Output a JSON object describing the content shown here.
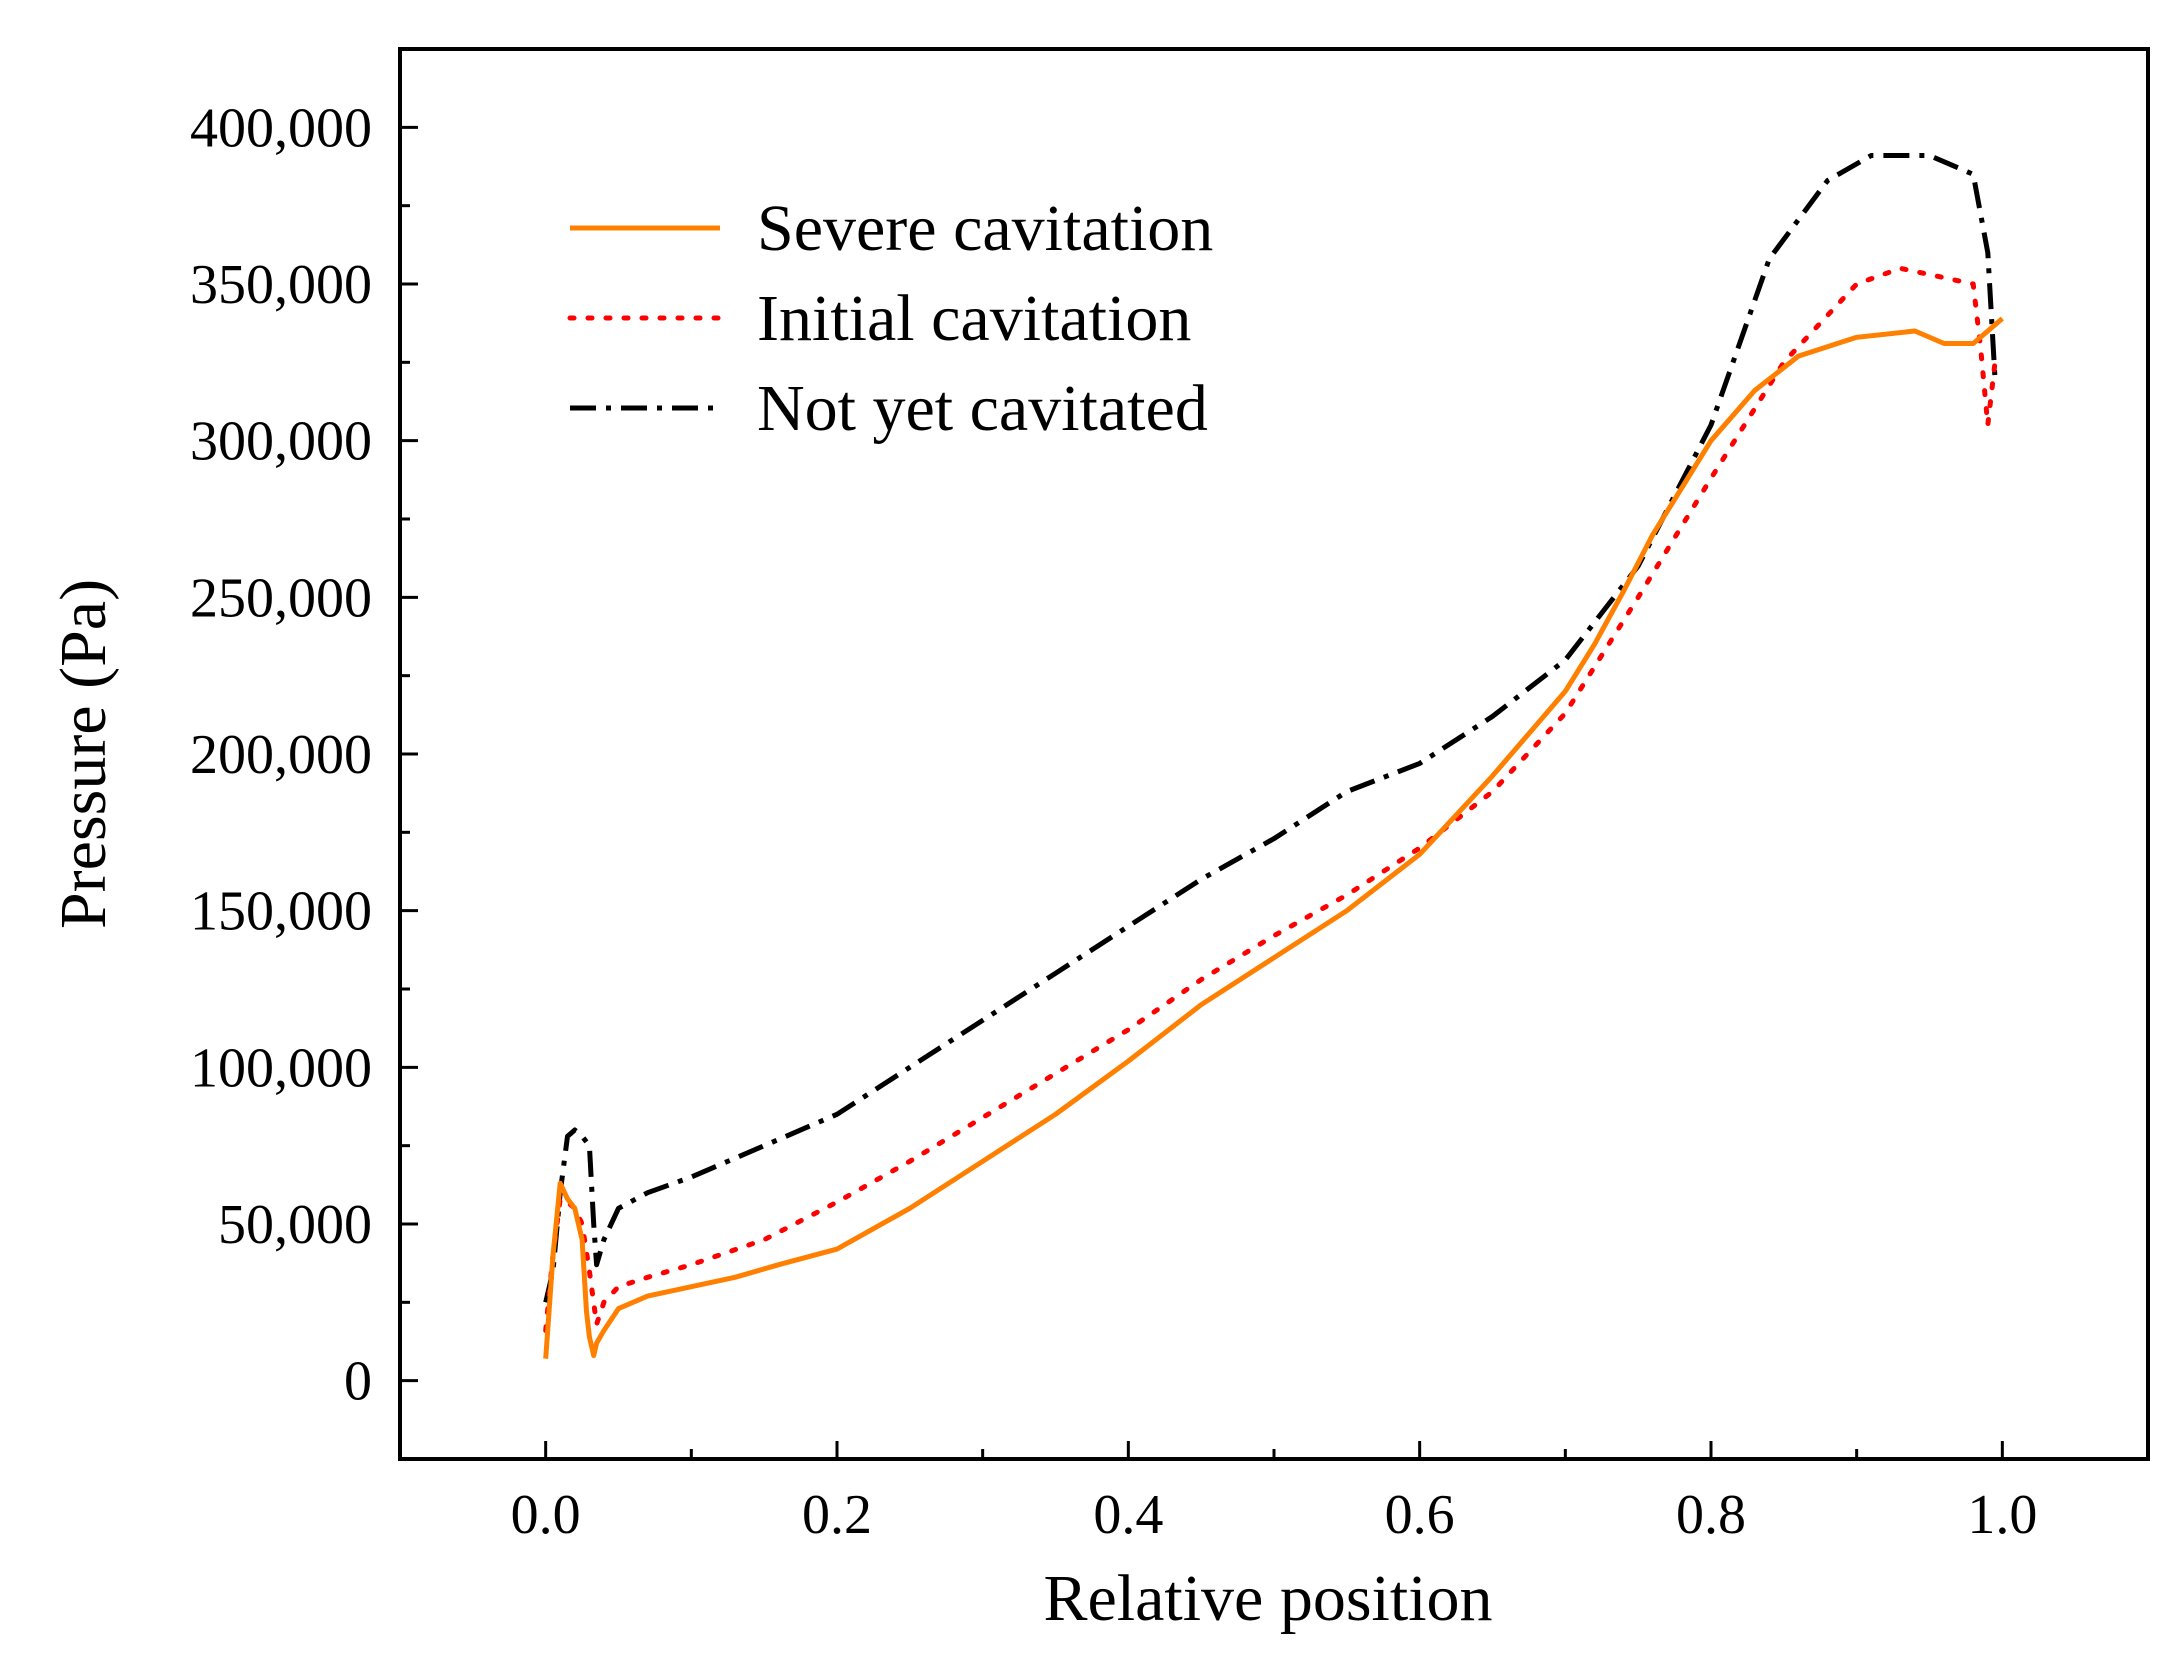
{
  "chart_data": {
    "type": "line",
    "title": "",
    "xlabel": "Relative position",
    "ylabel": "Pressure (Pa)",
    "xlim": [
      -0.1,
      1.1
    ],
    "ylim": [
      -25000,
      425000
    ],
    "xticks": [
      0.0,
      0.2,
      0.4,
      0.6,
      0.8,
      1.0
    ],
    "xtick_labels": [
      "0.0",
      "0.2",
      "0.4",
      "0.6",
      "0.8",
      "1.0"
    ],
    "yticks": [
      0,
      50000,
      100000,
      150000,
      200000,
      250000,
      300000,
      350000,
      400000
    ],
    "ytick_labels": [
      "0",
      "50,000",
      "100,000",
      "150,000",
      "200,000",
      "250,000",
      "300,000",
      "350,000",
      "400,000"
    ],
    "grid": false,
    "legend_position": "top-left",
    "series": [
      {
        "name": "Severe cavitation",
        "color": "#ff8000",
        "style": "solid",
        "x": [
          0.0,
          0.005,
          0.01,
          0.015,
          0.02,
          0.025,
          0.028,
          0.03,
          0.033,
          0.035,
          0.04,
          0.05,
          0.07,
          0.1,
          0.13,
          0.16,
          0.2,
          0.25,
          0.3,
          0.35,
          0.4,
          0.45,
          0.5,
          0.55,
          0.6,
          0.65,
          0.7,
          0.72,
          0.74,
          0.76,
          0.78,
          0.8,
          0.83,
          0.86,
          0.9,
          0.94,
          0.96,
          0.98,
          0.99,
          1.0
        ],
        "values": [
          7000,
          40000,
          63000,
          58000,
          55000,
          45000,
          22000,
          14000,
          8000,
          12000,
          16000,
          23000,
          27000,
          30000,
          33000,
          37000,
          42000,
          55000,
          70000,
          85000,
          102000,
          120000,
          135000,
          150000,
          168000,
          193000,
          220000,
          235000,
          252000,
          270000,
          285000,
          300000,
          316000,
          327000,
          333000,
          335000,
          331000,
          331000,
          335000,
          339000
        ]
      },
      {
        "name": "Initial cavitation",
        "color": "#ff0000",
        "style": "dotted",
        "x": [
          0.0,
          0.005,
          0.01,
          0.015,
          0.02,
          0.025,
          0.03,
          0.035,
          0.04,
          0.05,
          0.07,
          0.1,
          0.15,
          0.2,
          0.25,
          0.3,
          0.35,
          0.4,
          0.45,
          0.5,
          0.55,
          0.6,
          0.65,
          0.7,
          0.75,
          0.8,
          0.85,
          0.9,
          0.93,
          0.96,
          0.98,
          0.985,
          0.99,
          0.995
        ],
        "values": [
          16000,
          40000,
          58000,
          57000,
          55000,
          50000,
          35000,
          18000,
          25000,
          30000,
          33000,
          37000,
          45000,
          57000,
          70000,
          84000,
          98000,
          112000,
          128000,
          142000,
          155000,
          170000,
          188000,
          213000,
          250000,
          288000,
          325000,
          350000,
          355000,
          352000,
          350000,
          330000,
          305000,
          325000
        ]
      },
      {
        "name": "Not yet cavitated",
        "color": "#000000",
        "style": "dashdot",
        "x": [
          0.0,
          0.005,
          0.01,
          0.015,
          0.02,
          0.025,
          0.03,
          0.033,
          0.035,
          0.04,
          0.05,
          0.07,
          0.1,
          0.15,
          0.2,
          0.25,
          0.3,
          0.35,
          0.4,
          0.45,
          0.5,
          0.55,
          0.6,
          0.65,
          0.7,
          0.75,
          0.8,
          0.84,
          0.88,
          0.91,
          0.95,
          0.98,
          0.99,
          0.995
        ],
        "values": [
          25000,
          35000,
          60000,
          78000,
          80000,
          78000,
          75000,
          50000,
          37000,
          45000,
          55000,
          60000,
          65000,
          75000,
          85000,
          100000,
          115000,
          130000,
          145000,
          160000,
          173000,
          188000,
          197000,
          212000,
          230000,
          260000,
          305000,
          358000,
          383000,
          391000,
          391000,
          385000,
          360000,
          320000
        ]
      }
    ]
  }
}
